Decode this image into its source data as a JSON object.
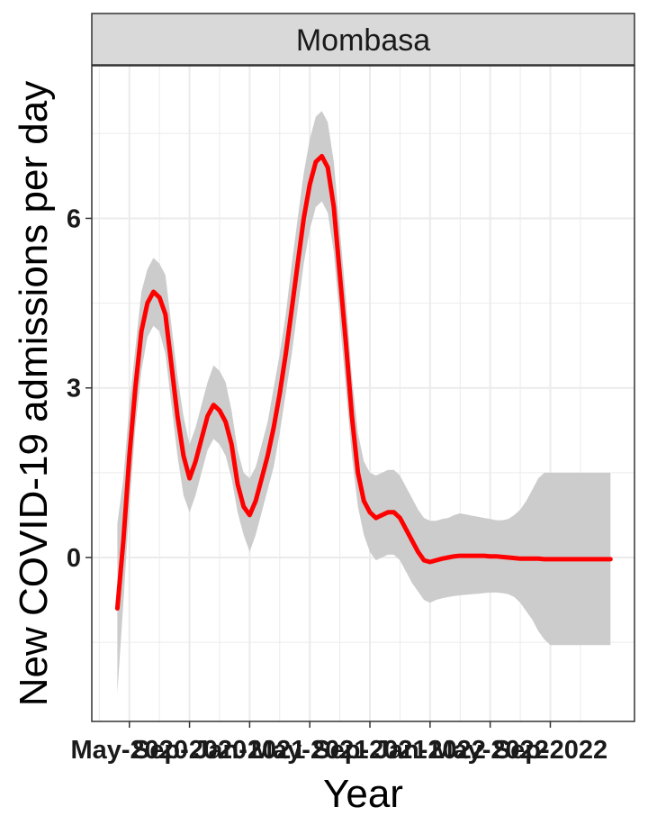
{
  "chart_data": {
    "type": "line",
    "facet_title": "Mombasa",
    "xlabel": "Year",
    "ylabel": "New COVID-19 admissions per day",
    "x_tick_labels": [
      "May-2020",
      "Sep-2020",
      "Jan-2021",
      "May-2021",
      "Sep-2021",
      "Jan-2022",
      "May-2022",
      "Sep-2022"
    ],
    "y_ticks": [
      0,
      3,
      6
    ],
    "ylim": [
      -2.9,
      8.7
    ],
    "grid": true,
    "line_color": "#ff0000",
    "band_color": "#cccccc",
    "series": [
      {
        "x": [
          -0.4,
          -0.2,
          0.0,
          0.2,
          0.4,
          0.6,
          0.8,
          1.0,
          1.2,
          1.4,
          1.6,
          1.8,
          2.0,
          2.2,
          2.4,
          2.6,
          2.8,
          3.0,
          3.2,
          3.4,
          3.6,
          3.8,
          4.0,
          4.2,
          4.4,
          4.6,
          4.8,
          5.0,
          5.2,
          5.4,
          5.6,
          5.8,
          6.0,
          6.2,
          6.4,
          6.6,
          6.8,
          7.0,
          7.2,
          7.4,
          7.6,
          7.8,
          8.0,
          8.2,
          8.4,
          8.6,
          8.8,
          9.0,
          9.2,
          9.4,
          9.6,
          9.8,
          10.0,
          10.2,
          10.4,
          10.6,
          10.8,
          11.0,
          11.2,
          11.4,
          11.6,
          11.8,
          12.0,
          12.2,
          12.4,
          12.6,
          12.8,
          13.0,
          13.2,
          13.4,
          13.6,
          13.8,
          14.0,
          14.2,
          14.4,
          14.6,
          14.8,
          15.0,
          15.2,
          15.4,
          15.6,
          15.8,
          16.0
        ],
        "y": [
          -0.9,
          0.3,
          1.8,
          3.0,
          4.0,
          4.5,
          4.7,
          4.6,
          4.3,
          3.4,
          2.5,
          1.8,
          1.4,
          1.7,
          2.1,
          2.5,
          2.7,
          2.6,
          2.4,
          2.0,
          1.3,
          0.9,
          0.75,
          1.0,
          1.4,
          1.8,
          2.3,
          2.9,
          3.6,
          4.4,
          5.2,
          6.0,
          6.6,
          7.0,
          7.1,
          6.9,
          6.2,
          5.0,
          3.8,
          2.5,
          1.5,
          1.0,
          0.8,
          0.7,
          0.75,
          0.8,
          0.8,
          0.7,
          0.5,
          0.3,
          0.1,
          -0.05,
          -0.08,
          -0.05,
          -0.02,
          0.0,
          0.02,
          0.03,
          0.03,
          0.03,
          0.03,
          0.03,
          0.02,
          0.02,
          0.01,
          0.0,
          -0.01,
          -0.02,
          -0.02,
          -0.02,
          -0.02,
          -0.03,
          -0.03,
          -0.03,
          -0.03,
          -0.03,
          -0.03,
          -0.03,
          -0.03,
          -0.03,
          -0.03,
          -0.03,
          -0.03
        ],
        "lower": [
          -2.4,
          -0.8,
          0.9,
          2.3,
          3.3,
          3.9,
          4.1,
          4.0,
          3.6,
          2.7,
          1.8,
          1.1,
          0.8,
          1.1,
          1.5,
          1.9,
          2.1,
          2.0,
          1.8,
          1.4,
          0.8,
          0.4,
          0.1,
          0.4,
          0.8,
          1.2,
          1.6,
          2.2,
          2.9,
          3.6,
          4.4,
          5.2,
          5.8,
          6.2,
          6.3,
          6.1,
          5.4,
          4.2,
          3.0,
          1.8,
          0.9,
          0.4,
          0.1,
          -0.05,
          0.0,
          0.05,
          0.05,
          -0.05,
          -0.25,
          -0.45,
          -0.6,
          -0.75,
          -0.8,
          -0.75,
          -0.72,
          -0.7,
          -0.68,
          -0.67,
          -0.66,
          -0.65,
          -0.64,
          -0.63,
          -0.62,
          -0.62,
          -0.63,
          -0.65,
          -0.7,
          -0.8,
          -0.95,
          -1.1,
          -1.3,
          -1.45,
          -1.55,
          -1.55,
          -1.55,
          -1.55,
          -1.55,
          -1.55,
          -1.55,
          -1.55,
          -1.55,
          -1.55,
          -1.55
        ],
        "upper": [
          0.6,
          1.4,
          2.7,
          3.7,
          4.7,
          5.1,
          5.3,
          5.2,
          5.0,
          4.1,
          3.2,
          2.5,
          2.0,
          2.3,
          2.7,
          3.1,
          3.4,
          3.3,
          3.1,
          2.6,
          1.9,
          1.5,
          1.4,
          1.6,
          2.0,
          2.4,
          3.0,
          3.6,
          4.3,
          5.2,
          6.0,
          6.8,
          7.4,
          7.8,
          7.9,
          7.7,
          7.0,
          5.8,
          4.6,
          3.2,
          2.2,
          1.7,
          1.5,
          1.45,
          1.5,
          1.55,
          1.55,
          1.45,
          1.25,
          1.05,
          0.85,
          0.7,
          0.65,
          0.65,
          0.68,
          0.7,
          0.75,
          0.78,
          0.76,
          0.74,
          0.72,
          0.7,
          0.68,
          0.66,
          0.66,
          0.68,
          0.75,
          0.85,
          1.0,
          1.2,
          1.4,
          1.5,
          1.5,
          1.5,
          1.5,
          1.5,
          1.5,
          1.5,
          1.5,
          1.5,
          1.5,
          1.5,
          1.5
        ]
      }
    ]
  }
}
